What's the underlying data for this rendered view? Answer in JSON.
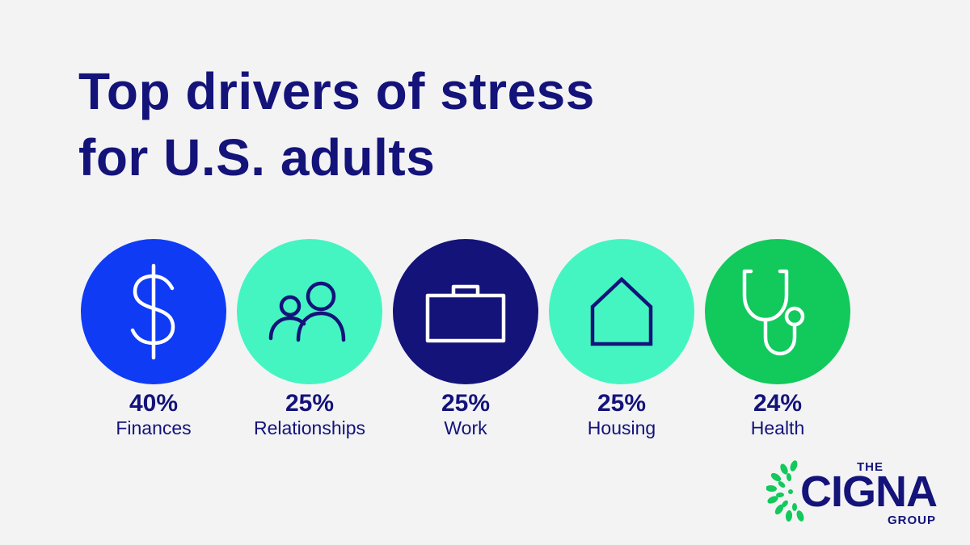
{
  "headline": {
    "line1": "Top drivers of stress",
    "line2": "for U.S. adults"
  },
  "chart_data": {
    "type": "bar",
    "categories": [
      "Finances",
      "Relationships",
      "Work",
      "Housing",
      "Health"
    ],
    "values": [
      40,
      25,
      25,
      25,
      24
    ],
    "unit": "%",
    "title": "Top drivers of stress for U.S. adults"
  },
  "stats": [
    {
      "value": "40%",
      "label": "Finances",
      "icon": "dollar-icon",
      "color": "#0f3bf5",
      "icon_color": "#ffffff"
    },
    {
      "value": "25%",
      "label": "Relationships",
      "icon": "people-icon",
      "color": "#44f5c2",
      "icon_color": "#14137a"
    },
    {
      "value": "25%",
      "label": "Work",
      "icon": "briefcase-icon",
      "color": "#14137a",
      "icon_color": "#ffffff"
    },
    {
      "value": "25%",
      "label": "Housing",
      "icon": "house-icon",
      "color": "#44f5c2",
      "icon_color": "#14137a"
    },
    {
      "value": "24%",
      "label": "Health",
      "icon": "stethoscope-icon",
      "color": "#12c95c",
      "icon_color": "#ffffff"
    }
  ],
  "logo": {
    "the": "THE",
    "word": "CIGNA",
    "group": "GROUP",
    "leaf_color": "#12c95c"
  },
  "colors": {
    "background": "#f3f3f4",
    "text": "#14137a"
  }
}
